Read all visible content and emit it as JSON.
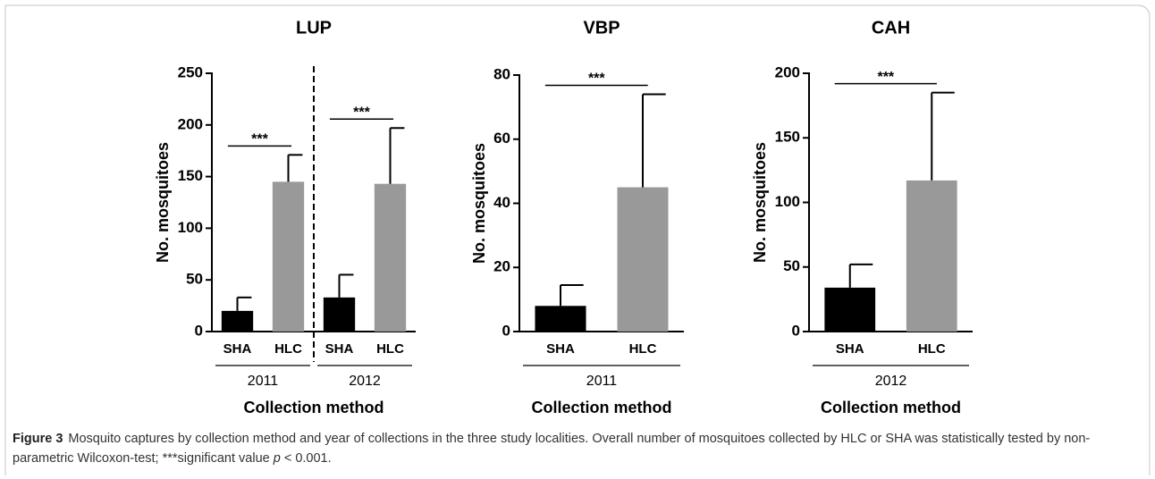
{
  "chart_data": [
    {
      "type": "bar",
      "title": "LUP",
      "y_label": "No. mosquitoes",
      "x_label": "Collection method",
      "ylim": [
        0,
        250
      ],
      "yticks": [
        0,
        50,
        100,
        150,
        200,
        250
      ],
      "bar_colors": [
        "#000000",
        "#999999"
      ],
      "group_divider": true,
      "groups": [
        {
          "label": "2011",
          "categories": [
            "SHA",
            "HLC"
          ],
          "values": [
            20,
            145
          ],
          "errors": [
            13,
            26
          ],
          "significance": "***"
        },
        {
          "label": "2012",
          "categories": [
            "SHA",
            "HLC"
          ],
          "values": [
            33,
            143
          ],
          "errors": [
            22,
            54
          ],
          "significance": "***"
        }
      ]
    },
    {
      "type": "bar",
      "title": "VBP",
      "y_label": "No. mosquitoes",
      "x_label": "Collection method",
      "ylim": [
        0,
        80
      ],
      "yticks": [
        0,
        20,
        40,
        60,
        80
      ],
      "bar_colors": [
        "#000000",
        "#999999"
      ],
      "group_divider": false,
      "groups": [
        {
          "label": "2011",
          "categories": [
            "SHA",
            "HLC"
          ],
          "values": [
            8,
            45
          ],
          "errors": [
            6.5,
            29
          ],
          "significance": "***"
        }
      ]
    },
    {
      "type": "bar",
      "title": "CAH",
      "y_label": "No. mosquitoes",
      "x_label": "Collection method",
      "ylim": [
        0,
        200
      ],
      "yticks": [
        0,
        50,
        100,
        150,
        200
      ],
      "bar_colors": [
        "#000000",
        "#999999"
      ],
      "group_divider": false,
      "groups": [
        {
          "label": "2012",
          "categories": [
            "SHA",
            "HLC"
          ],
          "values": [
            34,
            117
          ],
          "errors": [
            18,
            68
          ],
          "significance": "***"
        }
      ]
    }
  ],
  "caption": {
    "label": "Figure 3",
    "text": "Mosquito captures by collection method and year of collections in the three study localities. Overall number of mosquitoes collected by HLC or SHA was statistically tested by non-parametric Wilcoxon-test; ***significant value ",
    "italic": "p",
    "text_end": " < 0.001."
  }
}
